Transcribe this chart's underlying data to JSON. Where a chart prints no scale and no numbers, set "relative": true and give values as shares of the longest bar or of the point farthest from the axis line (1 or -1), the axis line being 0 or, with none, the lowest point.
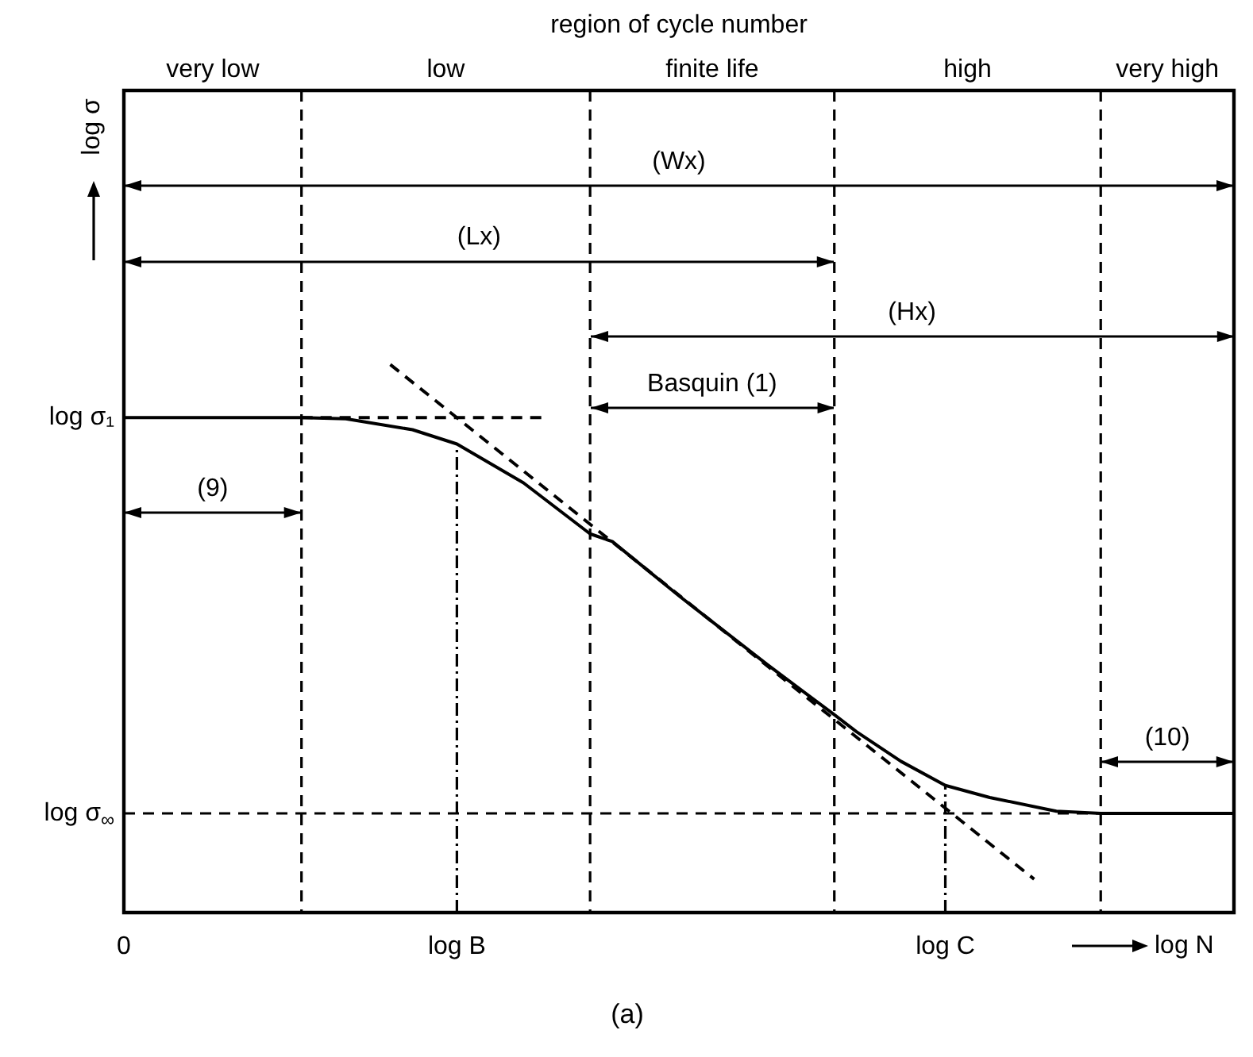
{
  "chart_data": {
    "type": "line",
    "relative": true,
    "title": "region of cycle number",
    "xlabel": "log N",
    "categories": [
      "0",
      null,
      null,
      null,
      null,
      null,
      null,
      null,
      null,
      null,
      null,
      null,
      null,
      null,
      null,
      "log B",
      null,
      null,
      null,
      null,
      null,
      null,
      null,
      null,
      null,
      null,
      null,
      null,
      null,
      null,
      null,
      null,
      null,
      null,
      null,
      null,
      null,
      "log C",
      null,
      null,
      null,
      null,
      null,
      null,
      null,
      null,
      null,
      null,
      null,
      null,
      null
    ],
    "legend": false,
    "marker": "none",
    "line_style": "solid",
    "ref_lines": [
      {
        "axis": "x",
        "value": "log B",
        "line_style": "dotted"
      },
      {
        "axis": "x",
        "value": "log C",
        "line_style": "dotted"
      },
      {
        "axis": "y",
        "value": 0.181,
        "label": "log σ$_{∞}$",
        "line_style": "dashed"
      }
    ],
    "series": [
      {
        "color": "#000000",
        "values": [
          0.903,
          null,
          null,
          null,
          null,
          null,
          null,
          null,
          0.903,
          null,
          0.901,
          null,
          null,
          0.881,
          null,
          0.855,
          null,
          null,
          0.784,
          null,
          null,
          0.691,
          0.677,
          null,
          null,
          0.578,
          null,
          null,
          null,
          0.452,
          null,
          null,
          0.361,
          0.33,
          null,
          0.276,
          null,
          0.232,
          null,
          0.21,
          null,
          null,
          0.185,
          null,
          0.181,
          null,
          null,
          null,
          null,
          null,
          0.181
        ]
      },
      {
        "color": "#000000",
        "line_style": "dashed",
        "values": [
          null,
          null,
          null,
          null,
          null,
          null,
          null,
          null,
          null,
          null,
          null,
          null,
          1,
          null,
          null,
          null,
          null,
          null,
          null,
          null,
          null,
          null,
          null,
          null,
          null,
          null,
          null,
          null,
          null,
          null,
          null,
          null,
          null,
          null,
          null,
          null,
          null,
          null,
          null,
          null,
          null,
          0.061,
          null,
          null,
          null,
          null,
          null,
          null,
          null,
          null,
          null
        ]
      },
      {
        "color": "#000000",
        "line_style": "dashed",
        "values": [
          null,
          null,
          null,
          null,
          null,
          null,
          null,
          null,
          0.903,
          null,
          null,
          null,
          null,
          null,
          null,
          null,
          null,
          null,
          null,
          0.903,
          null,
          null,
          null,
          null,
          null,
          null,
          null,
          null,
          null,
          null,
          null,
          null,
          null,
          null,
          null,
          null,
          null,
          null,
          null,
          null,
          null,
          null,
          null,
          null,
          null,
          null,
          null,
          null,
          null,
          null,
          null
        ]
      }
    ],
    "annotations": [
      "log σ",
      "log σ₁",
      "very low",
      "low",
      "finite life",
      "high",
      "very high",
      "(Wx)",
      "(Lx)",
      "(Hx)",
      "Basquin (1)",
      "(9)",
      "(10)",
      "(a)"
    ]
  }
}
